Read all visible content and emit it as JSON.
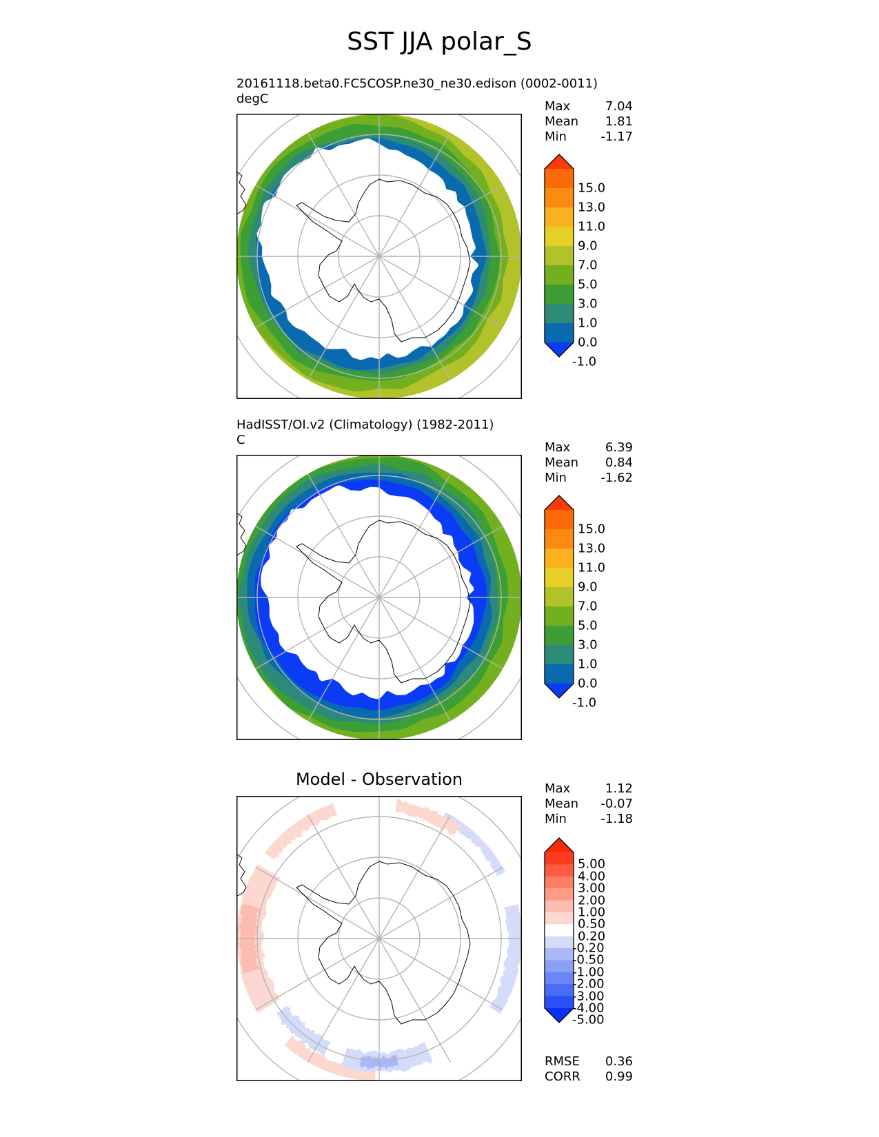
{
  "title": "SST JJA polar_S",
  "panels": [
    {
      "run_label": "20161118.beta0.FC5COSP.ne30_ne30.edison (0002-0011)",
      "units": "degC",
      "stats": [
        {
          "label": "Max",
          "value": "7.04"
        },
        {
          "label": "Mean",
          "value": "1.81"
        },
        {
          "label": "Min",
          "value": "-1.17"
        }
      ],
      "colorbar": {
        "labels": [
          "15.0",
          "13.0",
          "11.0",
          "9.0",
          "7.0",
          "5.0",
          "3.0",
          "1.0",
          "0.0",
          "-1.0"
        ],
        "colors": [
          "#0a3cf5",
          "#0a6ab0",
          "#2e8a78",
          "#3c9e34",
          "#72b020",
          "#b2c22a",
          "#e6d028",
          "#fbb020",
          "#fb8a10",
          "#fb6a06",
          "#fb3a0a"
        ]
      }
    },
    {
      "run_label": "HadISST/OI.v2 (Climatology) (1982-2011)",
      "units": "C",
      "stats": [
        {
          "label": "Max",
          "value": "6.39"
        },
        {
          "label": "Mean",
          "value": "0.84"
        },
        {
          "label": "Min",
          "value": "-1.62"
        }
      ],
      "colorbar": {
        "labels": [
          "15.0",
          "13.0",
          "11.0",
          "9.0",
          "7.0",
          "5.0",
          "3.0",
          "1.0",
          "0.0",
          "-1.0"
        ],
        "colors": [
          "#0a3cf5",
          "#0a6ab0",
          "#2e8a78",
          "#3c9e34",
          "#72b020",
          "#b2c22a",
          "#e6d028",
          "#fbb020",
          "#fb8a10",
          "#fb6a06",
          "#fb3a0a"
        ]
      }
    },
    {
      "title": "Model - Observation",
      "stats": [
        {
          "label": "Max",
          "value": "1.12"
        },
        {
          "label": "Mean",
          "value": "-0.07"
        },
        {
          "label": "Min",
          "value": "-1.18"
        }
      ],
      "colorbar": {
        "labels": [
          "5.00",
          "4.00",
          "3.00",
          "2.00",
          "1.00",
          "0.50",
          "0.20",
          "-0.20",
          "-0.50",
          "-1.00",
          "-2.00",
          "-3.00",
          "-4.00",
          "-5.00"
        ],
        "colors": [
          "#0a30f5",
          "#2a50f5",
          "#4a6cf5",
          "#6a88f5",
          "#8aa0f5",
          "#aab8f8",
          "#d4dcfa",
          "#ffffff",
          "#fcd8d0",
          "#fcbcb0",
          "#fc9c88",
          "#fc7c64",
          "#fc5c40",
          "#fb3c20",
          "#fb2a0a"
        ]
      },
      "metrics": [
        {
          "label": "RMSE",
          "value": "0.36"
        },
        {
          "label": "CORR",
          "value": "0.99"
        }
      ]
    }
  ]
}
